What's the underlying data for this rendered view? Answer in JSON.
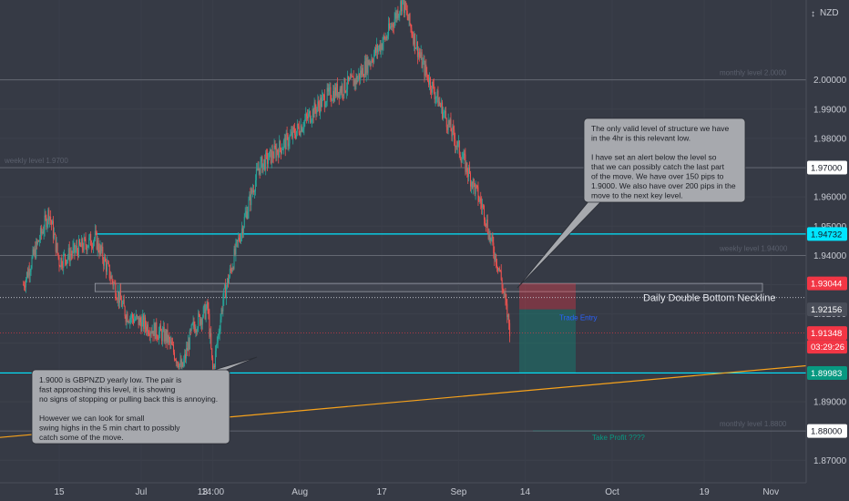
{
  "chart_data": {
    "type": "candlestick",
    "currency": "NZD",
    "y_ticks": [
      "2.00000",
      "1.99000",
      "1.98000",
      "1.97000",
      "1.96000",
      "1.95000",
      "1.94000",
      "1.93000",
      "1.92000",
      "1.91000",
      "1.90000",
      "1.89000",
      "1.88000",
      "1.87000"
    ],
    "x_ticks": [
      "15",
      "Jul",
      "13",
      "14:00",
      "Aug",
      "17",
      "Sep",
      "14",
      "Oct",
      "19",
      "Nov"
    ],
    "ylim": [
      1.8623,
      2.0273
    ],
    "price_tags": [
      {
        "value": "1.97000",
        "bg": "#ffffff",
        "fg": "#131722"
      },
      {
        "value": "1.94732",
        "bg": "#00e5ff",
        "fg": "#131722"
      },
      {
        "value": "1.93044",
        "bg": "#f23645",
        "fg": "#ffffff"
      },
      {
        "value": "1.92156",
        "bg": "#4a4e59",
        "fg": "#ffffff"
      },
      {
        "value": "1.91348",
        "bg": "#f23645",
        "fg": "#ffffff"
      },
      {
        "value": "03:29:26",
        "bg": "#f23645",
        "fg": "#ffffff"
      },
      {
        "value": "1.89983",
        "bg": "#089981",
        "fg": "#ffffff"
      },
      {
        "value": "1.88000",
        "bg": "#ffffff",
        "fg": "#131722"
      }
    ],
    "horizontal_levels": [
      {
        "value": 2.0,
        "label": "monthly level 2.0000"
      },
      {
        "value": 1.97,
        "label": "weekly level 1.9700"
      },
      {
        "value": 1.94,
        "label": "weekly level 1.94000"
      },
      {
        "value": 1.88,
        "label": "monthly level 1.8800"
      },
      {
        "value": 1.94732,
        "label": ""
      },
      {
        "value": 1.89983,
        "label": ""
      }
    ],
    "annotations": {
      "neckline": "Daily Double Bottom Neckline",
      "trade_entry": "Trade Entry",
      "take_profit": "Take Profit ????",
      "callout_top": [
        "The only valid level of structure we have",
        "in the 4hr is this relevant low.",
        "",
        "I have set an alert below the level so",
        "that we can possibly catch the last part",
        "of the move. We have over 150 pips to",
        "1.9000. We also have over 200 pips in the",
        "move to the next key level."
      ],
      "callout_bottom": [
        "1.9000 is GBPNZD yearly low. The pair is",
        "fast approaching this level, it is showing",
        "no signs of stopping or pulling back this is annoying.",
        "",
        "However we can look for small",
        "swing highs in the 5 min chart to possibly",
        "catch some of the move."
      ]
    },
    "colors": {
      "background": "#363a45",
      "up": "#26a69a",
      "down": "#ef5350",
      "cyan": "#00e5ff",
      "trend": "#f7a21b",
      "red": "#f23645",
      "green": "#089981"
    },
    "key_points": [
      {
        "x": "Jun 8",
        "y": 1.93
      },
      {
        "x": "Jun 22",
        "y": 1.947
      },
      {
        "x": "Jul 9",
        "y": 1.901
      },
      {
        "x": "Jul 15",
        "y": 1.8998
      },
      {
        "x": "Aug 21",
        "y": 2.027
      },
      {
        "x": "Sep 7",
        "y": 1.947
      },
      {
        "x": "Sep 11",
        "y": 1.915
      }
    ]
  }
}
